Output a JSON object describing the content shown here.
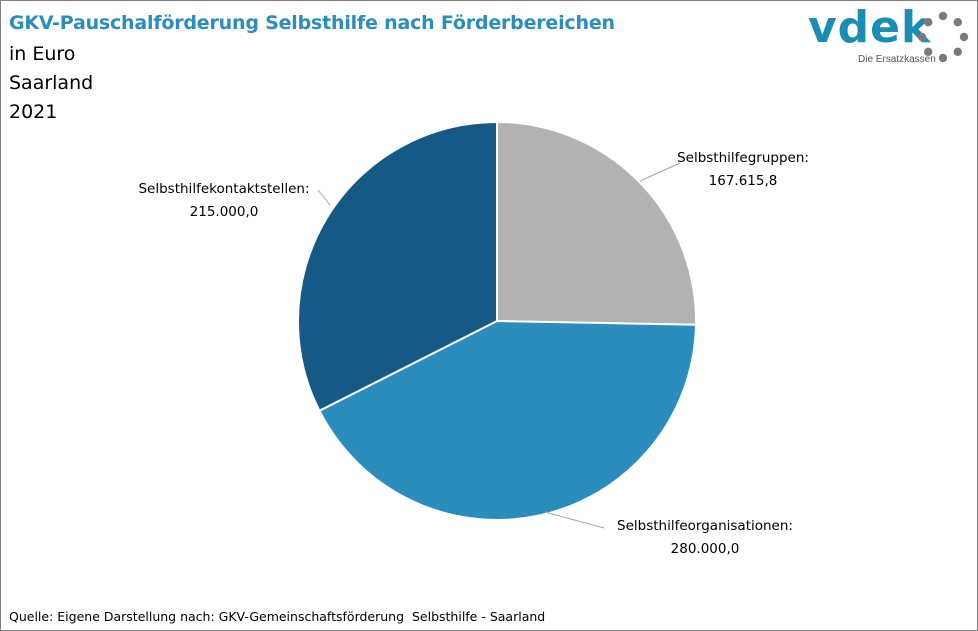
{
  "header": {
    "title": "GKV-Pauschalförderung Selbsthilfe nach Förderbereichen",
    "subtitle_unit": "in Euro",
    "subtitle_region": "Saarland",
    "subtitle_year": "2021"
  },
  "logo": {
    "word": "vdek",
    "tagline": "Die Ersatzkassen",
    "color": "#1a8db4",
    "icon": "dotted-ring-icon"
  },
  "chart_data": {
    "type": "pie",
    "categories": [
      "Selbsthilfegruppen:",
      "Selbsthilfeorganisationen:",
      "Selbsthilfekontaktstellen:"
    ],
    "values": [
      167615.8,
      280000.0,
      215000.0
    ],
    "value_labels": [
      "167.615,8",
      "280.000,0",
      "215.000,0"
    ],
    "colors": [
      "#b2b2b2",
      "#2b8cbe",
      "#155a84"
    ],
    "start_angle_deg": 0,
    "direction": "clockwise",
    "legend": "none"
  },
  "source": "Quelle: Eigene Darstellung nach: GKV-Gemeinschaftsförderung  Selbsthilfe - Saarland"
}
